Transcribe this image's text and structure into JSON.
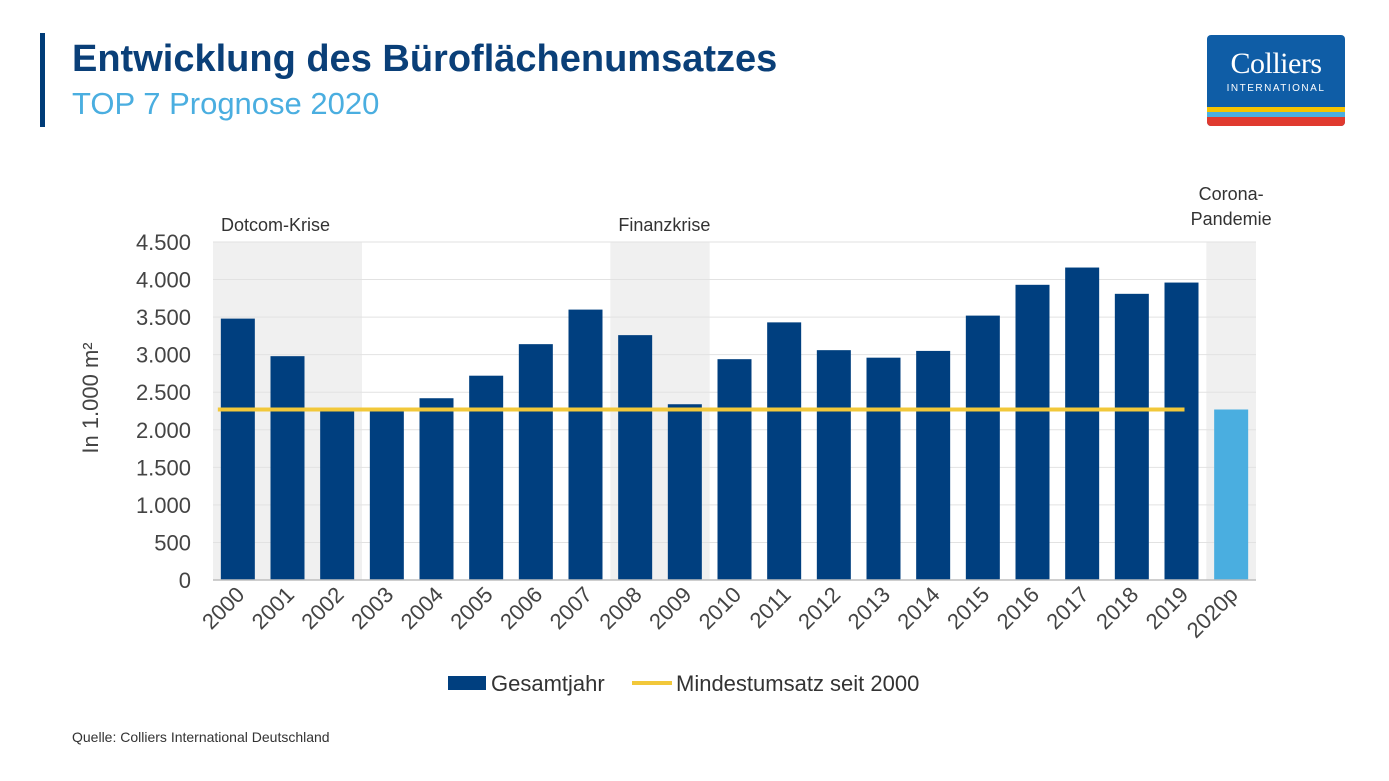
{
  "header": {
    "title": "Entwicklung des Büroflächenumsatzes",
    "subtitle": "TOP 7 Prognose 2020"
  },
  "logo": {
    "word": "Colliers",
    "sub": "INTERNATIONAL",
    "stripe_colors": [
      "#f5c300",
      "#4aaee0",
      "#e03a2f"
    ]
  },
  "source": "Quelle: Colliers International Deutschland",
  "colors": {
    "bar": "#003f7f",
    "forecast_bar": "#4aaee0",
    "line": "#f2c83a",
    "shade": "#f0f0f0",
    "grid": "#e2e2e2"
  },
  "chart_data": {
    "type": "bar",
    "categories": [
      "2000",
      "2001",
      "2002",
      "2003",
      "2004",
      "2005",
      "2006",
      "2007",
      "2008",
      "2009",
      "2010",
      "2011",
      "2012",
      "2013",
      "2014",
      "2015",
      "2016",
      "2017",
      "2018",
      "2019",
      "2020p"
    ],
    "series": [
      {
        "name": "Gesamtjahr",
        "values": [
          3480,
          2980,
          2270,
          2270,
          2420,
          2720,
          3140,
          3600,
          3260,
          2340,
          2940,
          3430,
          3060,
          2960,
          3050,
          3520,
          3930,
          4160,
          3810,
          3960,
          2270
        ],
        "forecast_index": 20
      },
      {
        "name": "Mindestumsatz seit 2000",
        "type": "line",
        "value": 2270,
        "from": "2000",
        "to": "2019"
      }
    ],
    "ylabel": "In 1.000 m²",
    "ylim": [
      0,
      4500
    ],
    "yticks": [
      0,
      500,
      1000,
      1500,
      2000,
      2500,
      3000,
      3500,
      4000,
      4500
    ],
    "ytick_labels": [
      "0",
      "500",
      "1.000",
      "1.500",
      "2.000",
      "2.500",
      "3.000",
      "3.500",
      "4.000",
      "4.500"
    ],
    "annotations": [
      {
        "text": "Dotcom-Krise",
        "from": "2000",
        "to": "2002"
      },
      {
        "text": "Finanzkrise",
        "from": "2008",
        "to": "2009"
      },
      {
        "text": "Corona-\nPandemie",
        "from": "2020p",
        "to": "2020p"
      }
    ],
    "grid": true,
    "legend": "bottom"
  }
}
